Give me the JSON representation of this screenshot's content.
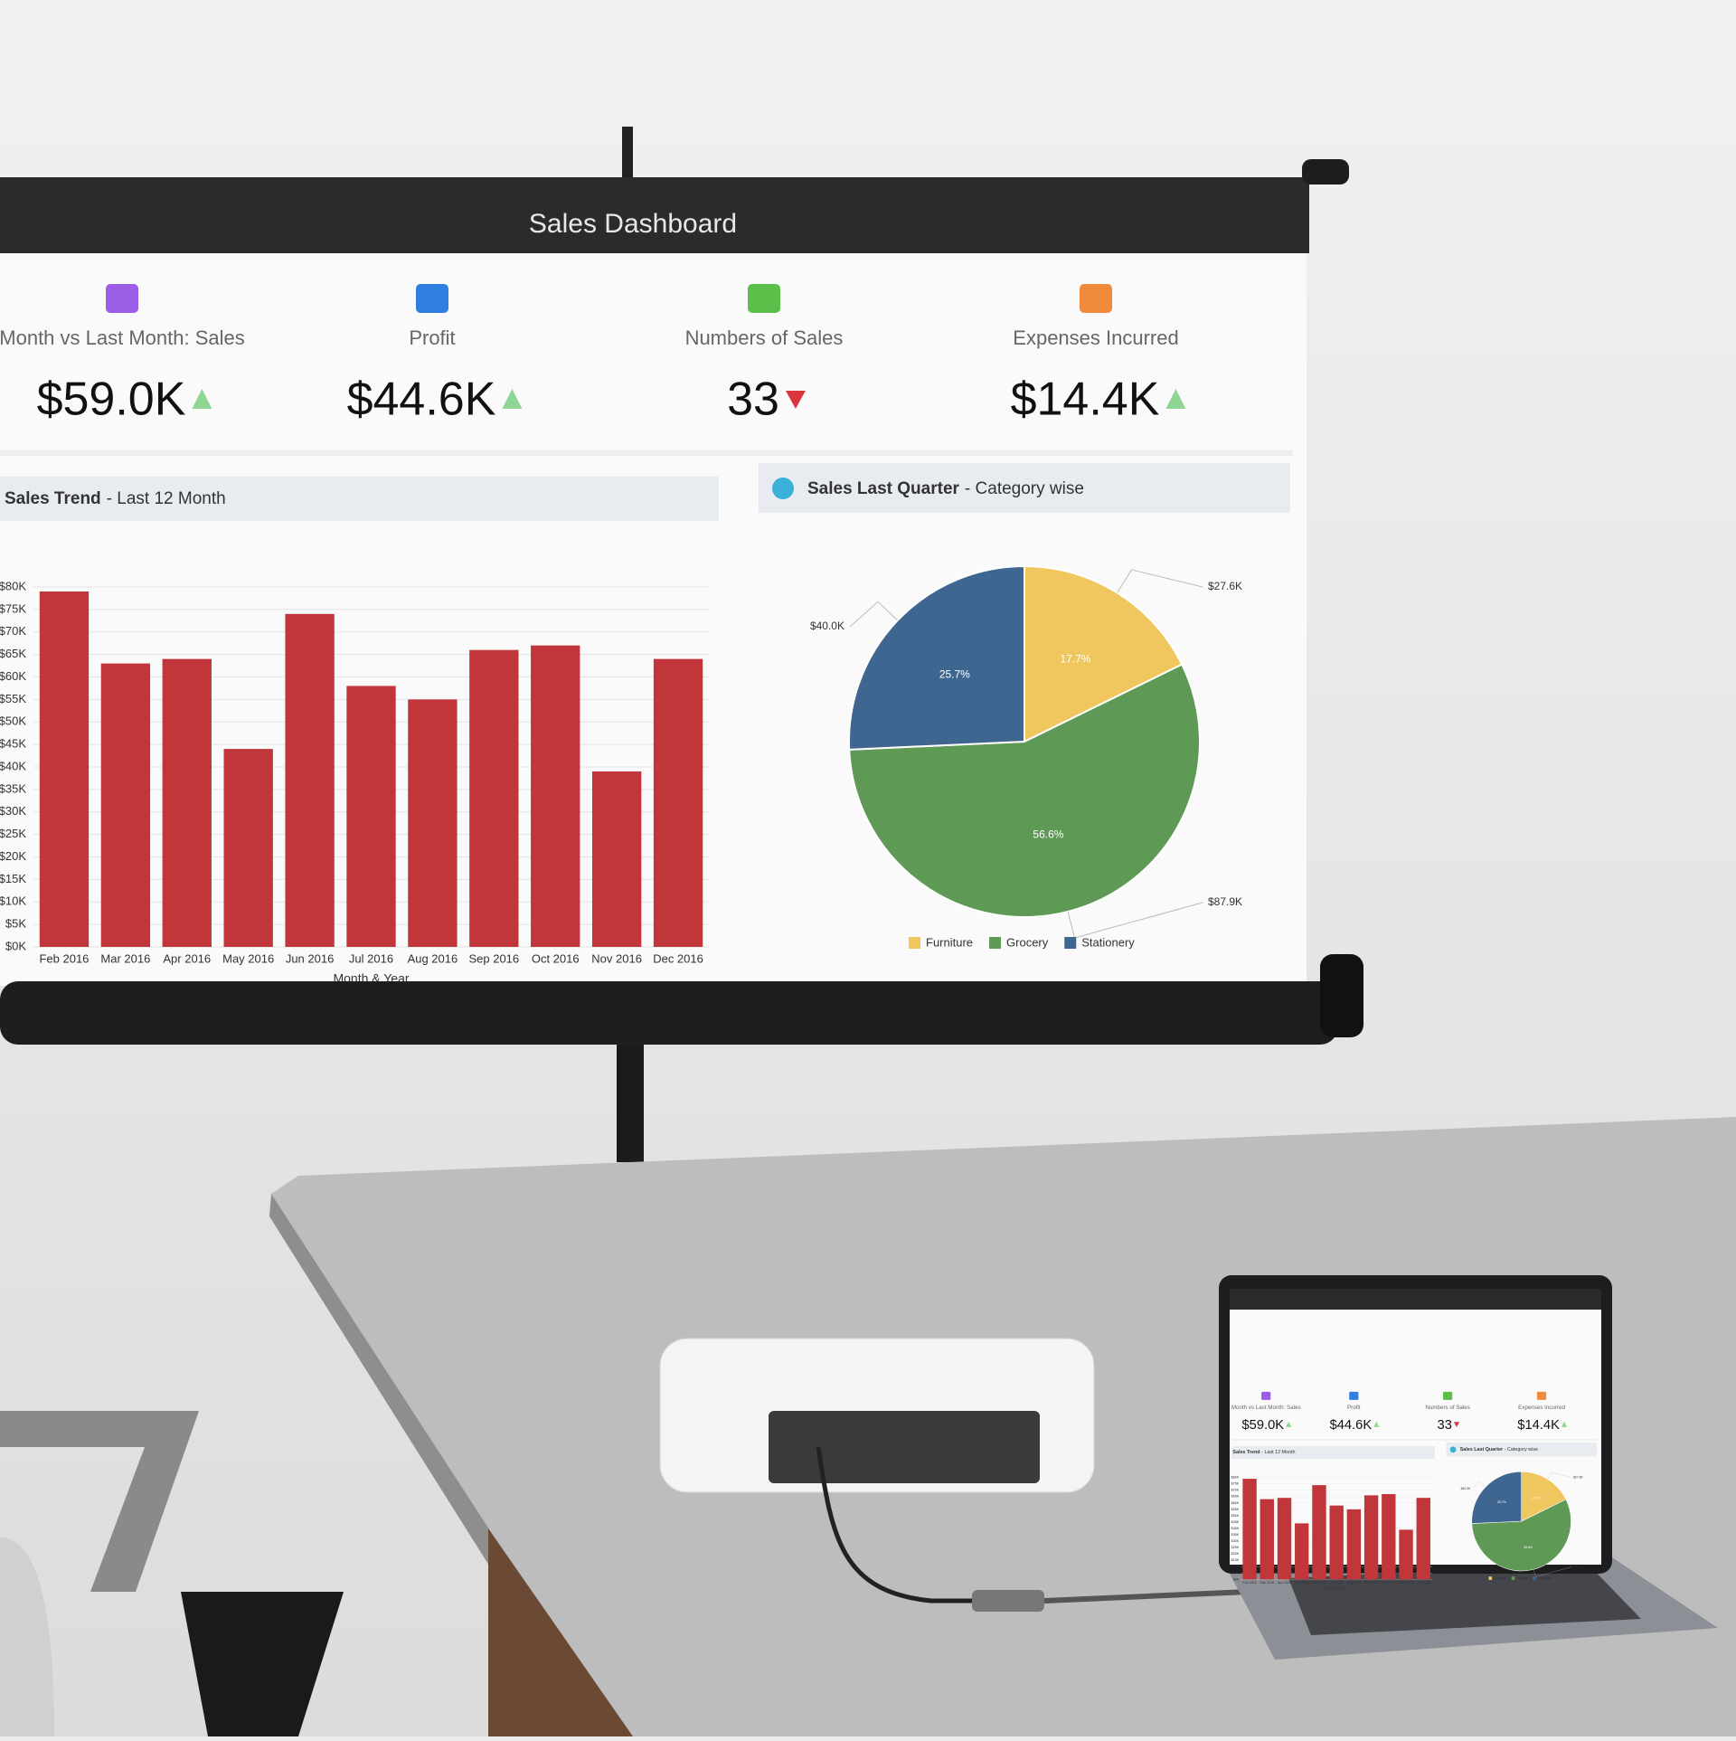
{
  "header": {
    "title": "Sales Dashboard"
  },
  "kpis": [
    {
      "label": "Month vs Last Month: Sales",
      "value": "$59.0K",
      "trend": "up",
      "icon_color": "#9b5de5"
    },
    {
      "label": "Profit",
      "value": "$44.6K",
      "trend": "up",
      "icon_color": "#2f7fe0"
    },
    {
      "label": "Numbers of Sales",
      "value": "33",
      "trend": "down",
      "icon_color": "#5bbf4a"
    },
    {
      "label": "Expenses Incurred",
      "value": "$14.4K",
      "trend": "up",
      "icon_color": "#f08a3c"
    }
  ],
  "chart_data": [
    {
      "type": "bar",
      "title": "Sales Trend",
      "subtitle": "- Last 12 Month",
      "x_label": "Month & Year",
      "categories": [
        "Feb 2016",
        "Mar 2016",
        "Apr 2016",
        "May 2016",
        "Jun 2016",
        "Jul 2016",
        "Aug 2016",
        "Sep 2016",
        "Oct 2016",
        "Nov 2016",
        "Dec 2016"
      ],
      "values": [
        79,
        63,
        64,
        44,
        74,
        58,
        55,
        66,
        67,
        39,
        64
      ],
      "color": "#c0363a",
      "ylim": [
        0,
        80
      ],
      "yticks": [
        {
          "value": 0,
          "label": "$0K"
        },
        {
          "value": 5,
          "label": "$5K"
        },
        {
          "value": 10,
          "label": "$10K"
        },
        {
          "value": 15,
          "label": "$15K"
        },
        {
          "value": 20,
          "label": "$20K"
        },
        {
          "value": 25,
          "label": "$25K"
        },
        {
          "value": 30,
          "label": "$30K"
        },
        {
          "value": 35,
          "label": "$35K"
        },
        {
          "value": 40,
          "label": "$40K"
        },
        {
          "value": 45,
          "label": "$45K"
        },
        {
          "value": 50,
          "label": "$50K"
        },
        {
          "value": 55,
          "label": "$55K"
        },
        {
          "value": 60,
          "label": "$60K"
        },
        {
          "value": 65,
          "label": "$65K"
        },
        {
          "value": 70,
          "label": "$70K"
        },
        {
          "value": 75,
          "label": "$75K"
        },
        {
          "value": 80,
          "label": "$80K"
        }
      ],
      "grid": true
    },
    {
      "type": "pie",
      "title": "Sales Last Quarter",
      "subtitle": "- Category wise",
      "categories": [
        "Furniture",
        "Grocery",
        "Stationery"
      ],
      "values": [
        27.6,
        87.9,
        40.0
      ],
      "value_labels": [
        "$27.6K",
        "$87.9K",
        "$40.0K"
      ],
      "percent_labels": [
        "17.7%",
        "56.6%",
        "25.7%"
      ],
      "colors": [
        "#f0c75e",
        "#5e9a55",
        "#3f6690"
      ]
    }
  ]
}
